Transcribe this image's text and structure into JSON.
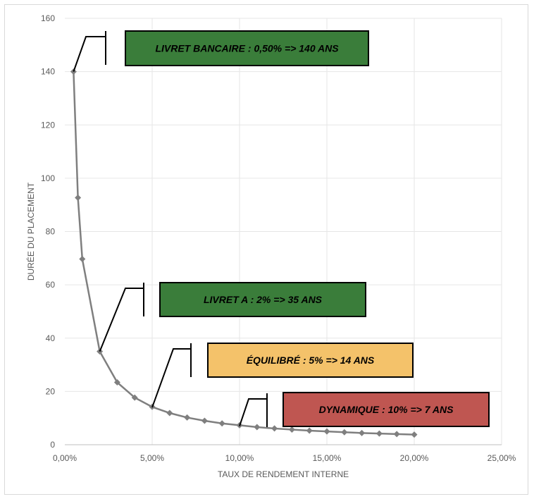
{
  "chart_data": {
    "type": "line",
    "xlabel": "TAUX DE RENDEMENT INTERNE",
    "ylabel": "DURÉE DU PLACEMENT",
    "xlim": [
      0,
      25
    ],
    "ylim": [
      0,
      160
    ],
    "x_ticks": [
      0,
      5,
      10,
      15,
      20,
      25
    ],
    "x_tick_labels": [
      "0,00%",
      "5,00%",
      "10,00%",
      "15,00%",
      "20,00%",
      "25,00%"
    ],
    "y_ticks": [
      0,
      20,
      40,
      60,
      80,
      100,
      120,
      140,
      160
    ],
    "y_tick_labels": [
      "0",
      "20",
      "40",
      "60",
      "80",
      "100",
      "120",
      "140",
      "160"
    ],
    "grid": true,
    "series": [
      {
        "color": "#7f7f7f",
        "marker": "diamond",
        "x": [
          0.5,
          0.75,
          1,
          2,
          3,
          4,
          5,
          6,
          7,
          8,
          9,
          10,
          11,
          12,
          13,
          14,
          15,
          16,
          17,
          18,
          19,
          20
        ],
        "y": [
          140,
          92.7,
          69.7,
          35,
          23.4,
          17.7,
          14.2,
          11.9,
          10.2,
          9,
          8,
          7.3,
          6.6,
          6.1,
          5.7,
          5.3,
          5,
          4.7,
          4.4,
          4.2,
          4,
          3.8
        ]
      }
    ],
    "annotations": [
      {
        "text": "LIVRET BANCAIRE : 0,50% => 140 ANS",
        "x": 0.5,
        "y": 140,
        "fill": "#3a7d3a",
        "text_color": "#000000"
      },
      {
        "text": "LIVRET A : 2% => 35 ANS",
        "x": 2,
        "y": 35,
        "fill": "#3a7d3a",
        "text_color": "#000000"
      },
      {
        "text": "ÉQUILIBRÉ : 5% => 14 ANS",
        "x": 5,
        "y": 14,
        "fill": "#f4c26a",
        "text_color": "#000000"
      },
      {
        "text": "DYNAMIQUE : 10% => 7 ANS",
        "x": 10,
        "y": 7,
        "fill": "#bf5651",
        "text_color": "#000000"
      }
    ]
  }
}
